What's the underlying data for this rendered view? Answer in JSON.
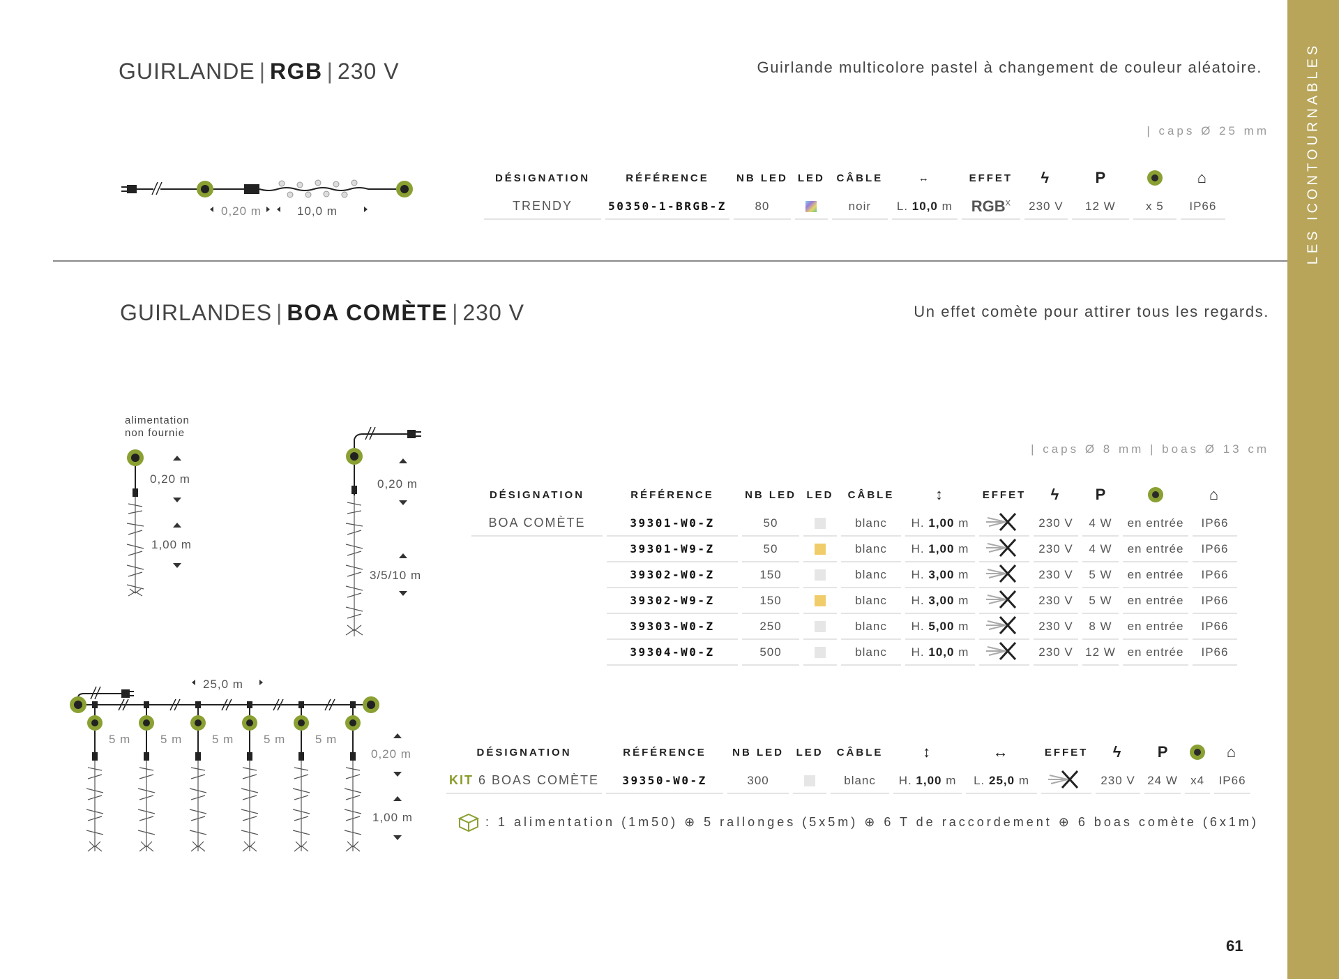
{
  "sidebar": {
    "label": "LES ICONTOURNABLES"
  },
  "page_number": "61",
  "section1": {
    "title_prefix": "GUIRLANDE",
    "title_bold": "RGB",
    "title_suffix": "230 V",
    "tagline": "Guirlande multicolore pastel à changement de couleur aléatoire.",
    "caps_note": "| caps Ø 25 mm",
    "diagram": {
      "dim_a": "0,20 m",
      "dim_b": "10,0 m"
    },
    "headers": {
      "designation": "DÉSIGNATION",
      "reference": "RÉFÉRENCE",
      "nb_led": "NB LED",
      "led": "LED",
      "cable": "CÂBLE",
      "effet": "EFFET",
      "p": "P"
    },
    "rows": [
      {
        "designation": "TRENDY",
        "reference": "50350-1-BRGB-Z",
        "nb_led": "80",
        "led_color": "rgb-gradient",
        "cable": "noir",
        "length_prefix": "L.",
        "length_value": "10,0",
        "length_unit": "m",
        "effet": "RGB",
        "effet_sup": "X",
        "voltage": "230 V",
        "power": "12 W",
        "connect": "x 5",
        "ip": "IP66"
      }
    ]
  },
  "section2": {
    "title_prefix": "GUIRLANDES",
    "title_bold": "BOA COMÈTE",
    "title_suffix": "230 V",
    "tagline": "Un effet comète pour attirer tous les regards.",
    "caps_note": "| caps Ø 8 mm | boas Ø 13 cm",
    "diagram_left": {
      "note_line1": "alimentation",
      "note_line2": "non fournie",
      "dim_a": "0,20 m",
      "dim_b": "1,00 m"
    },
    "diagram_right": {
      "dim_a": "0,20 m",
      "dim_b": "3/5/10 m"
    },
    "headers": {
      "designation": "DÉSIGNATION",
      "reference": "RÉFÉRENCE",
      "nb_led": "NB LED",
      "led": "LED",
      "cable": "CÂBLE",
      "effet": "EFFET",
      "p": "P"
    },
    "rows": [
      {
        "designation": "BOA COMÈTE",
        "reference": "39301-W0-Z",
        "nb_led": "50",
        "led_color": "#e6e6e6",
        "cable": "blanc",
        "height_prefix": "H.",
        "height_value": "1,00",
        "height_unit": "m",
        "voltage": "230 V",
        "power": "4 W",
        "connect": "en entrée",
        "ip": "IP66"
      },
      {
        "designation": "",
        "reference": "39301-W9-Z",
        "nb_led": "50",
        "led_color": "#f0cc6a",
        "cable": "blanc",
        "height_prefix": "H.",
        "height_value": "1,00",
        "height_unit": "m",
        "voltage": "230 V",
        "power": "4 W",
        "connect": "en entrée",
        "ip": "IP66"
      },
      {
        "designation": "",
        "reference": "39302-W0-Z",
        "nb_led": "150",
        "led_color": "#e6e6e6",
        "cable": "blanc",
        "height_prefix": "H.",
        "height_value": "3,00",
        "height_unit": "m",
        "voltage": "230 V",
        "power": "5 W",
        "connect": "en entrée",
        "ip": "IP66"
      },
      {
        "designation": "",
        "reference": "39302-W9-Z",
        "nb_led": "150",
        "led_color": "#f0cc6a",
        "cable": "blanc",
        "height_prefix": "H.",
        "height_value": "3,00",
        "height_unit": "m",
        "voltage": "230 V",
        "power": "5 W",
        "connect": "en entrée",
        "ip": "IP66"
      },
      {
        "designation": "",
        "reference": "39303-W0-Z",
        "nb_led": "250",
        "led_color": "#e6e6e6",
        "cable": "blanc",
        "height_prefix": "H.",
        "height_value": "5,00",
        "height_unit": "m",
        "voltage": "230 V",
        "power": "8 W",
        "connect": "en entrée",
        "ip": "IP66"
      },
      {
        "designation": "",
        "reference": "39304-W0-Z",
        "nb_led": "500",
        "led_color": "#e6e6e6",
        "cable": "blanc",
        "height_prefix": "H.",
        "height_value": "10,0",
        "height_unit": "m",
        "voltage": "230 V",
        "power": "12 W",
        "connect": "en entrée",
        "ip": "IP66"
      }
    ]
  },
  "section3": {
    "diagram": {
      "total": "25,0 m",
      "spacing": "5 m",
      "dim_a": "0,20 m",
      "dim_b": "1,00 m"
    },
    "headers": {
      "designation": "DÉSIGNATION",
      "reference": "RÉFÉRENCE",
      "nb_led": "NB LED",
      "led": "LED",
      "cable": "CÂBLE",
      "effet": "EFFET",
      "p": "P"
    },
    "row": {
      "kit_word": "KIT",
      "designation_rest": "6 BOAS COMÈTE",
      "reference": "39350-W0-Z",
      "nb_led": "300",
      "led_color": "#e6e6e6",
      "cable": "blanc",
      "height_prefix": "H.",
      "height_value": "1,00",
      "height_unit": "m",
      "length_prefix": "L.",
      "length_value": "25,0",
      "length_unit": "m",
      "voltage": "230 V",
      "power": "24 W",
      "connect": "x4",
      "ip": "IP66"
    },
    "kit_contents": ": 1 alimentation (1m50) ⊕ 5 rallonges (5x5m) ⊕ 6 T de raccordement ⊕ 6 boas comète (6x1m)"
  },
  "colors": {
    "sidebar": "#b8a55a",
    "accent_green": "#8aa032",
    "warm_white": "#f0cc6a",
    "cold_white": "#e6e6e6"
  }
}
